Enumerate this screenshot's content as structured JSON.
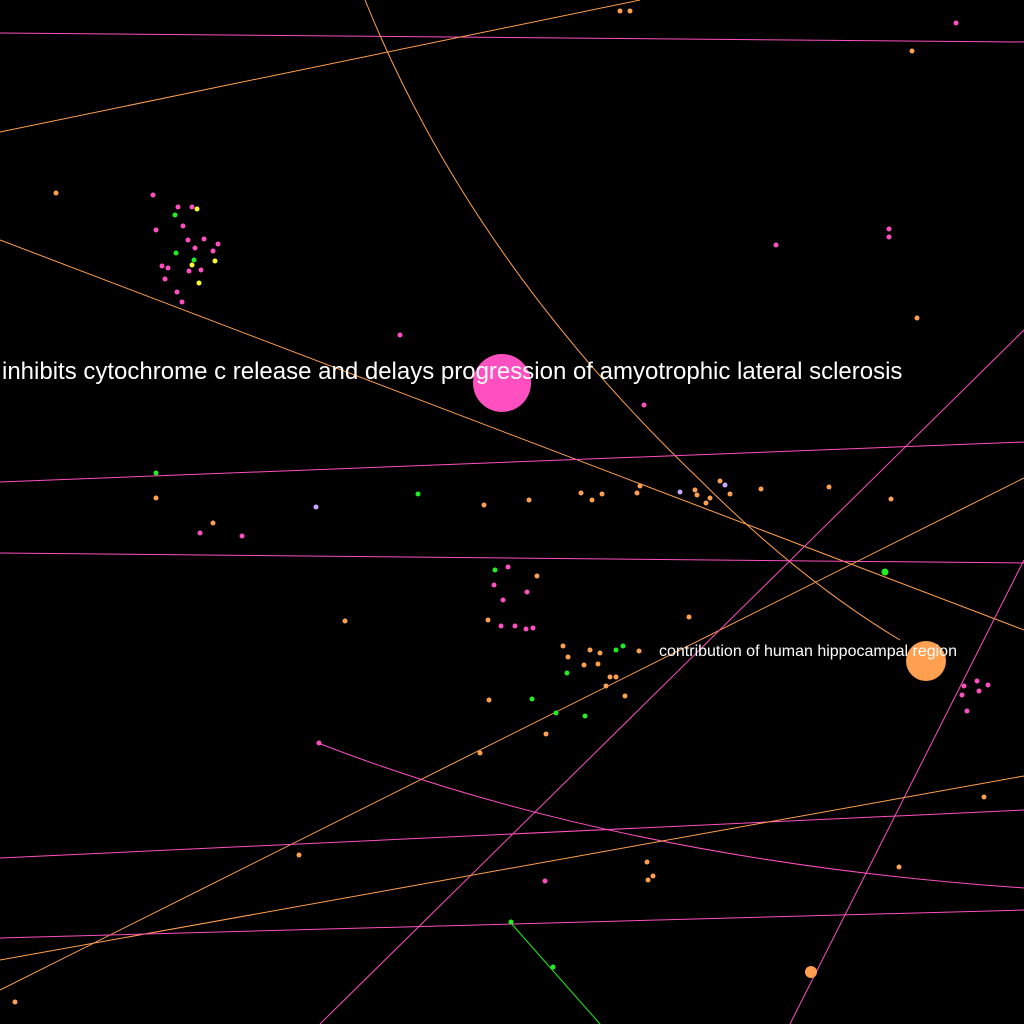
{
  "colors": {
    "background": "#000000",
    "pink": "#ff4fc0",
    "orange": "#ffa050",
    "green": "#22ee22",
    "yellow": "#ffff33",
    "lavender": "#c8a8ff",
    "label": "#ffffff"
  },
  "labels": {
    "focus_node": "inhibits cytochrome c release and delays progression of amyotrophic lateral sclerosis",
    "secondary_node": "contribution of human hippocampal region"
  }
}
